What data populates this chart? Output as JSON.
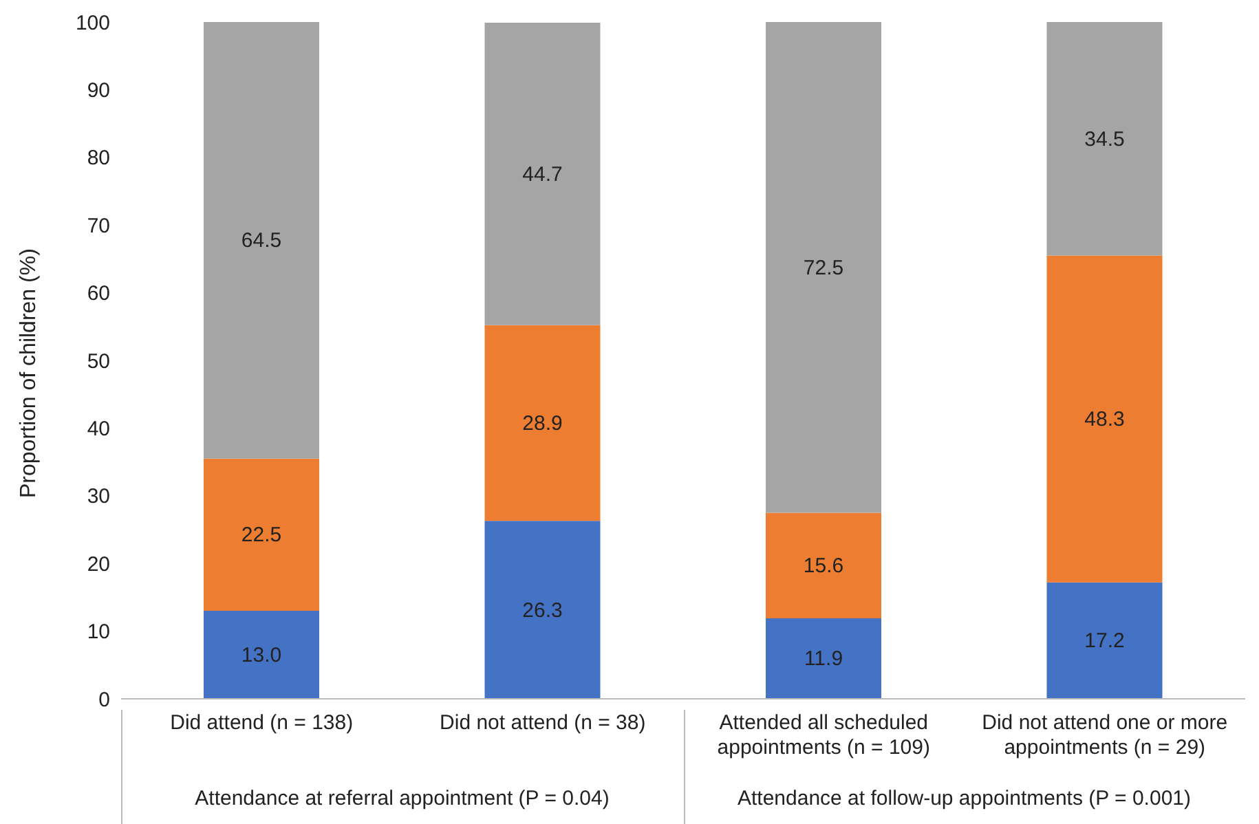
{
  "chart_data": {
    "type": "bar",
    "stacked": true,
    "ylabel": "Proportion of children (%)",
    "categories": [
      "Did attend (n = 138)",
      "Did not attend (n = 38)",
      "Attended all scheduled appointments (n = 109)",
      "Did not attend one or more appointments (n = 29)"
    ],
    "series": [
      {
        "color": "#4472c4",
        "values": [
          13.0,
          26.3,
          11.9,
          17.2
        ],
        "value_labels": [
          "13.0",
          "26.3",
          "11.9",
          "17.2"
        ]
      },
      {
        "color": "#ed7d31",
        "values": [
          22.5,
          28.9,
          15.6,
          48.3
        ],
        "value_labels": [
          "22.5",
          "28.9",
          "15.6",
          "48.3"
        ]
      },
      {
        "color": "#a5a5a5",
        "values": [
          64.5,
          44.7,
          72.5,
          34.5
        ],
        "value_labels": [
          "64.5",
          "44.7",
          "72.5",
          "34.5"
        ]
      }
    ],
    "ylim": [
      0,
      100
    ],
    "yticks": [
      0,
      10,
      20,
      30,
      40,
      50,
      60,
      70,
      80,
      90,
      100
    ],
    "grid": false,
    "legend": false,
    "annotations": [
      "Attendance at referral appointment (P = 0.04)",
      "Attendance at follow-up appointments (P = 0.001)"
    ]
  }
}
